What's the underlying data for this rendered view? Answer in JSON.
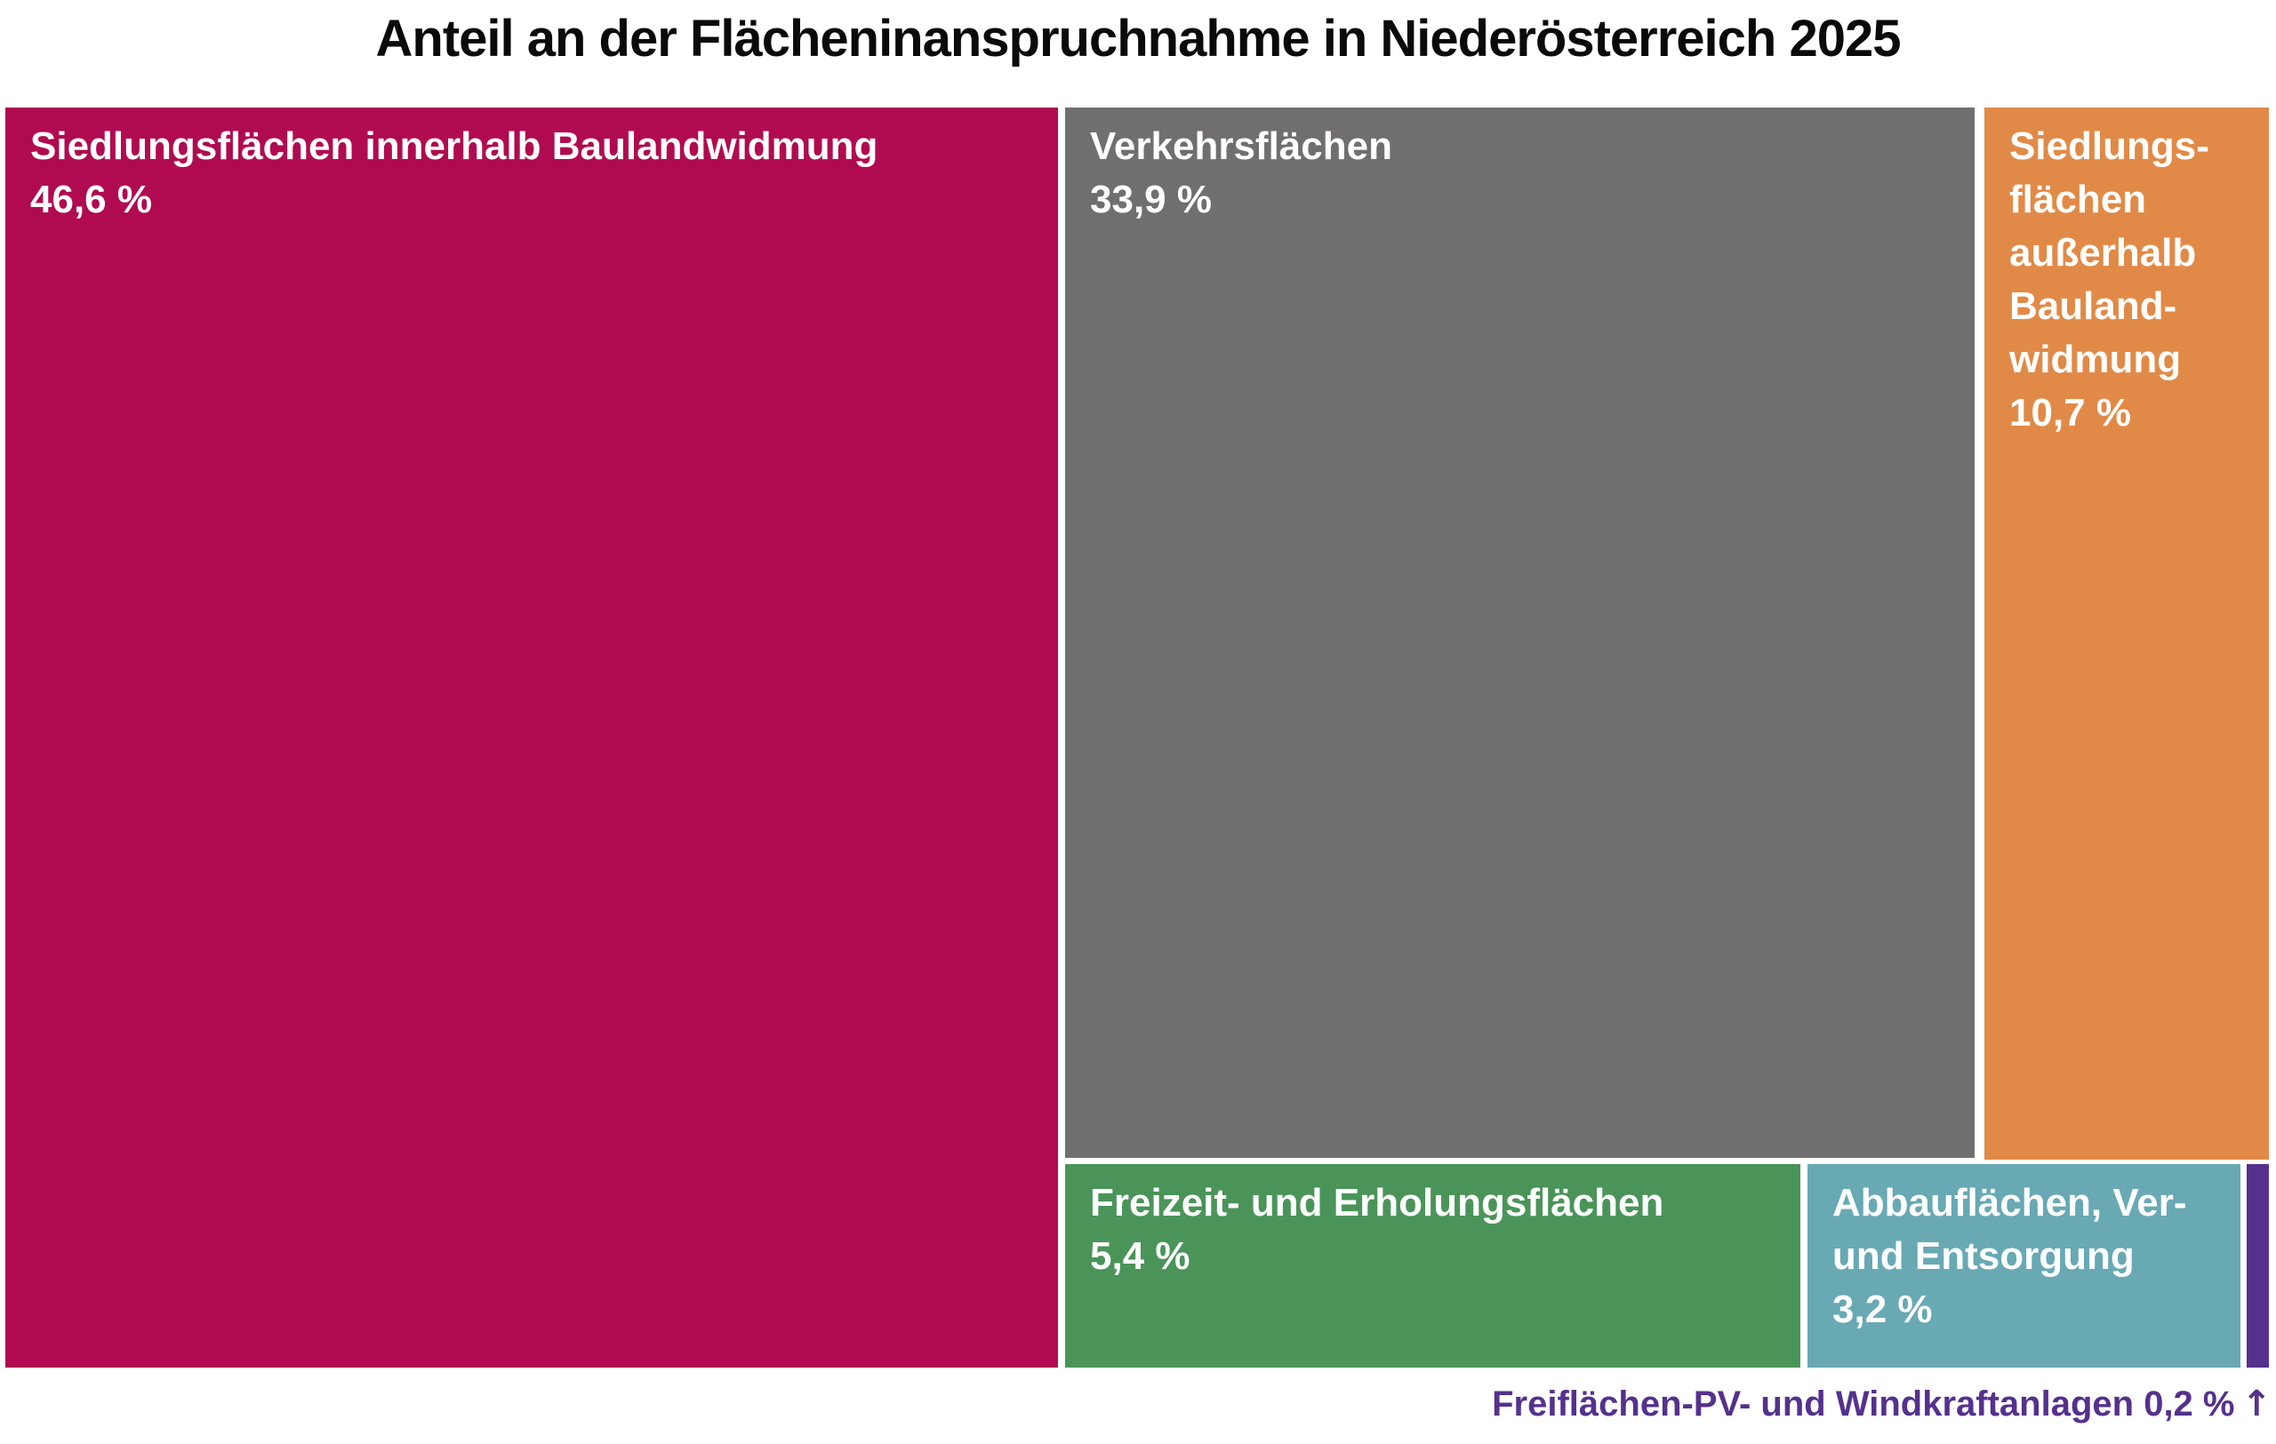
{
  "title": "Anteil an der Flächeninanspruchnahme in Niederösterreich 2025",
  "background_color": "#FFFFFF",
  "title_color": "#0A0A0A",
  "chart_data": {
    "type": "treemap",
    "title": "Anteil an der Flächeninanspruchnahme in Niederösterreich 2025",
    "unit": "%",
    "total_percent": 100,
    "legend_position": "none",
    "label_style": "white bold text, top-left inside each tile",
    "items": [
      {
        "name": "Siedlungsflächen innerhalb Baulandwidmung",
        "label": "Siedlungsflächen innerhalb Baulandwidmung",
        "value": 46.6,
        "value_label": "46,6 %",
        "color": "#B00B50",
        "text_color": "#FFFFFF"
      },
      {
        "name": "Verkehrsflächen",
        "label": "Verkehrsflächen",
        "value": 33.9,
        "value_label": "33,9 %",
        "color": "#706E6F",
        "text_color": "#FFFFFF"
      },
      {
        "name": "Siedlungsflächen außerhalb Baulandwidmung",
        "label": "Siedlungs-\nflächen\naußerhalb\nBauland-\nwidmung",
        "value": 10.7,
        "value_label": "10,7 %",
        "color": "#E18A47",
        "text_color": "#FFFFFF"
      },
      {
        "name": "Freizeit- und Erholungsflächen",
        "label": "Freizeit- und Erholungsflächen",
        "value": 5.4,
        "value_label": "5,4 %",
        "color": "#4A9459",
        "text_color": "#FFFFFF"
      },
      {
        "name": "Abbauflächen, Ver- und Entsorgung",
        "label": "Abbauflächen, Ver-\nund Entsorgung",
        "value": 3.2,
        "value_label": "3,2 %",
        "color": "#68A9B4",
        "text_color": "#FFFFFF"
      },
      {
        "name": "Freiflächen-PV- und Windkraftanlagen",
        "label": "",
        "value": 0.2,
        "value_label": "0,2 %",
        "color": "#55318C",
        "text_color": "#FFFFFF"
      }
    ],
    "annotation": {
      "text": "Freiflächen-PV- und Windkraftanlagen 0,2 %",
      "arrow_icon": "↑",
      "color": "#55318C",
      "position": "bottom-right, arrow pointing up at the purple sliver tile"
    }
  }
}
